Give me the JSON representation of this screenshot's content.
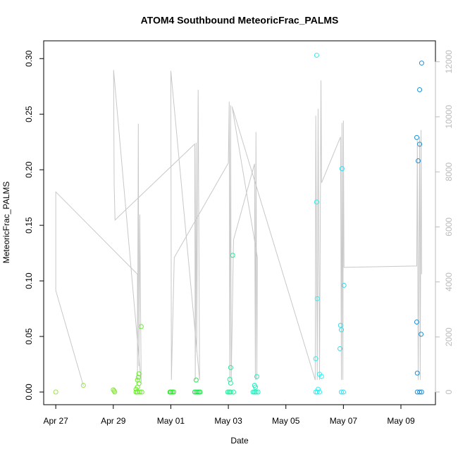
{
  "chart_data": {
    "type": "scatter",
    "title": "ATOM4 Southbound MeteoricFrac_PALMS",
    "x_label": "Date",
    "y_label": "MeteoricFrac_PALMS",
    "xlim": [
      -0.42,
      13.2
    ],
    "xticks": [
      {
        "value": 0,
        "label": "Apr 27"
      },
      {
        "value": 2,
        "label": "Apr 29"
      },
      {
        "value": 4,
        "label": "May 01"
      },
      {
        "value": 6,
        "label": "May 03"
      },
      {
        "value": 8,
        "label": "May 05"
      },
      {
        "value": 10,
        "label": "May 07"
      },
      {
        "value": 12,
        "label": "May 09"
      }
    ],
    "ylim": [
      -0.0114,
      0.316
    ],
    "yticks": [
      {
        "value": 0,
        "label": "0.00"
      },
      0.05,
      {
        "value": 0.1,
        "label": "0.10"
      },
      0.15,
      {
        "value": 0.2,
        "label": "0.20"
      },
      0.25,
      {
        "value": 0.3,
        "label": "0.30"
      }
    ],
    "y2lim": [
      -460,
      12760
    ],
    "y2ticks": [
      0,
      2000,
      4000,
      6000,
      8000,
      10000,
      12000
    ],
    "points": {
      "x": [
        0,
        0.96,
        2.0,
        2.03,
        2.05,
        2.79,
        2.79,
        2.84,
        2.84,
        2.87,
        2.89,
        2.89,
        2.84,
        2.92,
        2.97,
        2.99,
        3.97,
        4.0,
        4.05,
        4.1,
        4.83,
        4.88,
        4.93,
        4.98,
        5.02,
        4.88,
        5.98,
        6.03,
        6.08,
        6.18,
        6.05,
        6.08,
        6.08,
        6.15,
        6.86,
        6.91,
        6.96,
        7.03,
        6.91,
        6.94,
        6.99,
        9.04,
        9.09,
        9.17,
        9.07,
        9.07,
        9.09,
        9.04,
        9.12,
        9.17,
        9.24,
        9.88,
        9.9,
        9.93,
        9.95,
        10.02,
        9.93,
        10.0,
        12.57,
        12.65,
        12.72,
        12.72,
        12.65,
        12.55,
        12.65,
        12.6,
        12.55,
        12.7,
        12.57
      ],
      "y": [
        0,
        0.006,
        0.002,
        0.001,
        0,
        0,
        0.0025,
        0.0044,
        0.0108,
        0.0133,
        0.0076,
        0.0165,
        0,
        0,
        0.0589,
        0,
        0,
        0,
        0,
        0,
        0,
        0,
        0,
        0,
        0,
        0.0108,
        0,
        0,
        0,
        0,
        0.0114,
        0.008,
        0.022,
        0.123,
        0,
        0,
        0,
        0,
        0.006,
        0.0044,
        0.0139,
        0,
        0,
        0,
        0.303,
        0.171,
        0.084,
        0.03,
        0.0025,
        0.016,
        0.014,
        0.039,
        0.06,
        0.056,
        0.201,
        0.096,
        0,
        0,
        0,
        0,
        0,
        0.296,
        0.272,
        0.229,
        0.223,
        0.208,
        0.063,
        0.052,
        0.017
      ],
      "colors": [
        "#99E64D",
        "#99E64D",
        "#88E63D",
        "#88E63D",
        "#88E63D",
        "#66EE22",
        "#66EE22",
        "#66EE22",
        "#66EE22",
        "#66EE22",
        "#66EE22",
        "#66EE22",
        "#66EE22",
        "#66EE22",
        "#66EE22",
        "#66EE22",
        "#22EE22",
        "#22EE22",
        "#22EE22",
        "#22EE22",
        "#11EE44",
        "#11EE44",
        "#11EE44",
        "#11EE44",
        "#11EE44",
        "#11EE44",
        "#22EE99",
        "#22EE99",
        "#22EE99",
        "#22EE99",
        "#22EE99",
        "#22EE99",
        "#22EE99",
        "#22EE99",
        "#22EEBB",
        "#22EEBB",
        "#22EEBB",
        "#22EEBB",
        "#22EEBB",
        "#22EEBB",
        "#22EEBB",
        "#33EEEE",
        "#33EEEE",
        "#33EEEE",
        "#33EEEE",
        "#33EEEE",
        "#33EEEE",
        "#33EEEE",
        "#33EEEE",
        "#33EEEE",
        "#33EEEE",
        "#33DDF0",
        "#33DDF0",
        "#33DDF0",
        "#33DDF0",
        "#33DDF0",
        "#33DDF0",
        "#33DDF0",
        "#1E90D8",
        "#1E90D8",
        "#1E90D8",
        "#1E90D8",
        "#1E90D8",
        "#1E90D8",
        "#1E90D8",
        "#1E90D8",
        "#1E90D8",
        "#1E90D8",
        "#1E90D8"
      ]
    },
    "line": {
      "axis": "y2",
      "color": "#c8c8c8",
      "x": [
        0.96,
        0,
        0,
        2.84,
        2.84,
        2.87,
        2.89,
        2.92,
        2.97,
        2.01,
        2.03,
        2.06,
        4.83,
        4.85,
        4.88,
        4.9,
        4.95,
        5.0,
        4.0,
        4.02,
        4.12,
        6.0,
        6.03,
        6.05,
        6.08,
        6.1,
        6.18,
        6.91,
        6.94,
        6.96,
        6.99,
        7.01,
        6.13,
        9.02,
        9.04,
        9.09,
        9.12,
        9.17,
        9.22,
        9.24,
        9.9,
        9.93,
        9.95,
        9.98,
        10.0,
        10.02,
        12.55,
        12.57,
        12.6,
        12.65,
        12.67,
        12.7,
        12.72
      ],
      "y2": [
        230,
        3690,
        7270,
        4280,
        310,
        9750,
        950,
        6450,
        310,
        11700,
        7550,
        6250,
        9010,
        440,
        9060,
        1460,
        10980,
        440,
        11670,
        440,
        4890,
        8320,
        10550,
        440,
        10420,
        440,
        5530,
        8290,
        440,
        9450,
        440,
        4890,
        10370,
        440,
        10040,
        440,
        10290,
        440,
        11320,
        7600,
        9270,
        440,
        9780,
        440,
        9860,
        4530,
        4580,
        9140,
        440,
        9270,
        440,
        9520,
        4280
      ]
    }
  }
}
